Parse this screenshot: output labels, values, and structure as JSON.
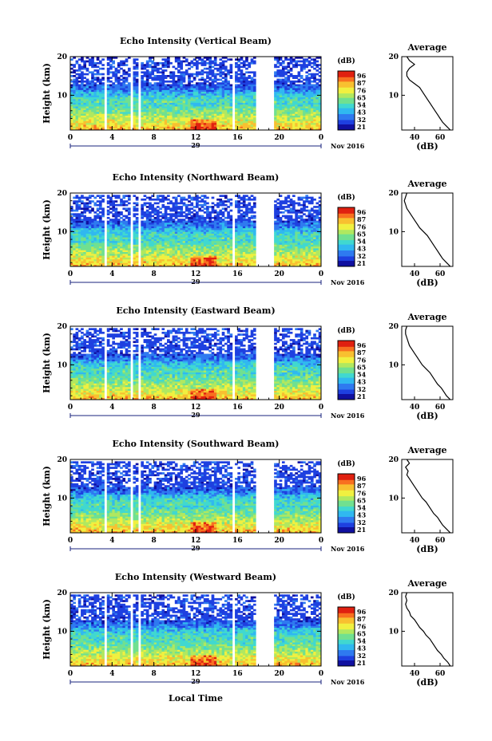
{
  "figure": {
    "xlabel": "Local Time",
    "date_day": "29",
    "date_month": "Nov 2016",
    "colorbar_unit": "(dB)",
    "colorbar_ticks": [
      "96",
      "87",
      "76",
      "65",
      "54",
      "43",
      "32",
      "21"
    ],
    "colors": {
      "scale": [
        "#1010a0",
        "#1e40e0",
        "#2f7af0",
        "#30b8f0",
        "#40d8d0",
        "#70e090",
        "#b0e860",
        "#f0f040",
        "#f8c030",
        "#f87020",
        "#e02010"
      ],
      "axis": "#000000",
      "date_axis": "#1a237e"
    }
  },
  "chart_data": [
    {
      "type": "heatmap",
      "title": "Echo Intensity (Vertical Beam)",
      "ylabel": "Height (km)",
      "x_ticks": [
        "0",
        "4",
        "8",
        "12",
        "16",
        "20",
        "0"
      ],
      "y_ticks": [
        "20",
        "10"
      ],
      "xlim": [
        0,
        24
      ],
      "ylim": [
        1,
        20
      ],
      "gaps_hours": [
        [
          3.3,
          3.6
        ],
        [
          5.8,
          6.1
        ],
        [
          6.5,
          6.8
        ],
        [
          15.4,
          15.7
        ],
        [
          17.8,
          19.5
        ]
      ],
      "average": {
        "title": "Average",
        "xlabel": "(dB)",
        "x_ticks": [
          "40",
          "60"
        ],
        "y_ticks": [
          "20",
          "10"
        ],
        "xlim": [
          30,
          70
        ],
        "height_km": [
          1,
          2,
          3,
          4,
          5,
          6,
          7,
          8,
          9,
          10,
          11,
          12,
          13,
          14,
          15,
          16,
          17,
          18,
          19,
          20
        ],
        "db": [
          68,
          65,
          62,
          60,
          58,
          56,
          54,
          52,
          50,
          48,
          46,
          44,
          40,
          36,
          34,
          34,
          36,
          40,
          36,
          34
        ]
      }
    },
    {
      "type": "heatmap",
      "title": "Echo Intensity (Northward Beam)",
      "ylabel": "Height (km)",
      "x_ticks": [
        "0",
        "4",
        "8",
        "12",
        "16",
        "20",
        "0"
      ],
      "y_ticks": [
        "20",
        "10"
      ],
      "xlim": [
        0,
        24
      ],
      "ylim": [
        1,
        20
      ],
      "gaps_hours": [
        [
          3.3,
          3.6
        ],
        [
          5.8,
          6.1
        ],
        [
          6.5,
          6.8
        ],
        [
          15.4,
          15.7
        ],
        [
          17.8,
          19.5
        ]
      ],
      "average": {
        "title": "Average",
        "xlabel": "(dB)",
        "x_ticks": [
          "40",
          "60"
        ],
        "y_ticks": [
          "20",
          "10"
        ],
        "xlim": [
          30,
          70
        ],
        "height_km": [
          1,
          2,
          3,
          4,
          5,
          6,
          7,
          8,
          9,
          10,
          11,
          12,
          13,
          14,
          15,
          16,
          17,
          18,
          19,
          20
        ],
        "db": [
          68,
          65,
          62,
          60,
          58,
          56,
          54,
          52,
          50,
          47,
          44,
          42,
          40,
          38,
          36,
          34,
          33,
          32,
          33,
          34
        ]
      }
    },
    {
      "type": "heatmap",
      "title": "Echo Intensity (Eastward Beam)",
      "ylabel": "Height (km)",
      "x_ticks": [
        "0",
        "4",
        "8",
        "12",
        "16",
        "20",
        "0"
      ],
      "y_ticks": [
        "20",
        "10"
      ],
      "xlim": [
        0,
        24
      ],
      "ylim": [
        1,
        20
      ],
      "gaps_hours": [
        [
          3.3,
          3.6
        ],
        [
          5.8,
          6.1
        ],
        [
          6.5,
          6.8
        ],
        [
          15.4,
          15.7
        ],
        [
          17.8,
          19.5
        ]
      ],
      "average": {
        "title": "Average",
        "xlabel": "(dB)",
        "x_ticks": [
          "40",
          "60"
        ],
        "y_ticks": [
          "20",
          "10"
        ],
        "xlim": [
          30,
          70
        ],
        "height_km": [
          1,
          2,
          3,
          4,
          5,
          6,
          7,
          8,
          9,
          10,
          11,
          12,
          13,
          14,
          15,
          16,
          17,
          18,
          19,
          20
        ],
        "db": [
          68,
          65,
          63,
          61,
          58,
          56,
          54,
          52,
          49,
          46,
          44,
          42,
          40,
          38,
          36,
          35,
          34,
          33,
          33,
          34
        ]
      }
    },
    {
      "type": "heatmap",
      "title": "Echo Intensity (Southward Beam)",
      "ylabel": "Height (km)",
      "x_ticks": [
        "0",
        "4",
        "8",
        "12",
        "16",
        "20",
        "0"
      ],
      "y_ticks": [
        "20",
        "10"
      ],
      "xlim": [
        0,
        24
      ],
      "ylim": [
        1,
        20
      ],
      "gaps_hours": [
        [
          3.3,
          3.6
        ],
        [
          5.8,
          6.1
        ],
        [
          6.5,
          6.8
        ],
        [
          15.4,
          15.7
        ],
        [
          17.8,
          19.5
        ]
      ],
      "average": {
        "title": "Average",
        "xlabel": "(dB)",
        "x_ticks": [
          "40",
          "60"
        ],
        "y_ticks": [
          "20",
          "10"
        ],
        "xlim": [
          30,
          70
        ],
        "height_km": [
          1,
          2,
          3,
          4,
          5,
          6,
          7,
          8,
          9,
          10,
          11,
          12,
          13,
          14,
          15,
          16,
          17,
          18,
          19,
          20
        ],
        "db": [
          68,
          65,
          62,
          60,
          58,
          55,
          53,
          51,
          49,
          46,
          44,
          42,
          40,
          38,
          36,
          34,
          35,
          33,
          36,
          34
        ]
      }
    },
    {
      "type": "heatmap",
      "title": "Echo Intensity (Westward Beam)",
      "ylabel": "Height (km)",
      "x_ticks": [
        "0",
        "4",
        "8",
        "12",
        "16",
        "20",
        "0"
      ],
      "y_ticks": [
        "20",
        "10"
      ],
      "xlim": [
        0,
        24
      ],
      "ylim": [
        1,
        20
      ],
      "gaps_hours": [
        [
          3.3,
          3.6
        ],
        [
          5.8,
          6.1
        ],
        [
          6.5,
          6.8
        ],
        [
          15.4,
          15.7
        ],
        [
          17.8,
          19.5
        ]
      ],
      "average": {
        "title": "Average",
        "xlabel": "(dB)",
        "x_ticks": [
          "40",
          "60"
        ],
        "y_ticks": [
          "20",
          "10"
        ],
        "xlim": [
          30,
          70
        ],
        "height_km": [
          1,
          2,
          3,
          4,
          5,
          6,
          7,
          8,
          9,
          10,
          11,
          12,
          13,
          14,
          15,
          16,
          17,
          18,
          19,
          20
        ],
        "db": [
          68,
          66,
          63,
          61,
          58,
          56,
          54,
          52,
          49,
          47,
          44,
          42,
          40,
          37,
          36,
          34,
          33,
          34,
          33,
          34
        ]
      }
    }
  ]
}
